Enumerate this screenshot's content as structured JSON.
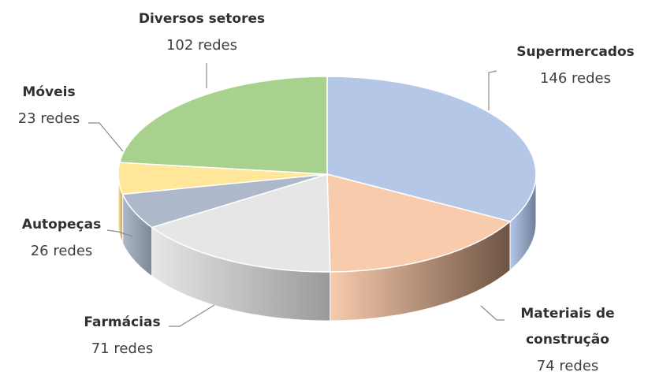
{
  "chart_data": {
    "type": "pie3d",
    "categories": [
      "Supermercados",
      "Materiais de construção",
      "Farmácias",
      "Autopeças",
      "Móveis",
      "Diversos setores"
    ],
    "values": [
      146,
      74,
      71,
      26,
      23,
      102
    ],
    "value_labels": [
      "146 redes",
      "74 redes",
      "71 redes",
      "26 redes",
      "23 redes",
      "102 redes"
    ],
    "colors": [
      "#b4c7e7",
      "#f8cbad",
      "#e7e6e6",
      "#adb9ca",
      "#ffe699",
      "#a9d18e"
    ],
    "side_colors": [
      "#6f7f99",
      "#6e5444",
      "#9a9a9a",
      "#7d8797",
      "#b8a468",
      "#77925f"
    ]
  }
}
